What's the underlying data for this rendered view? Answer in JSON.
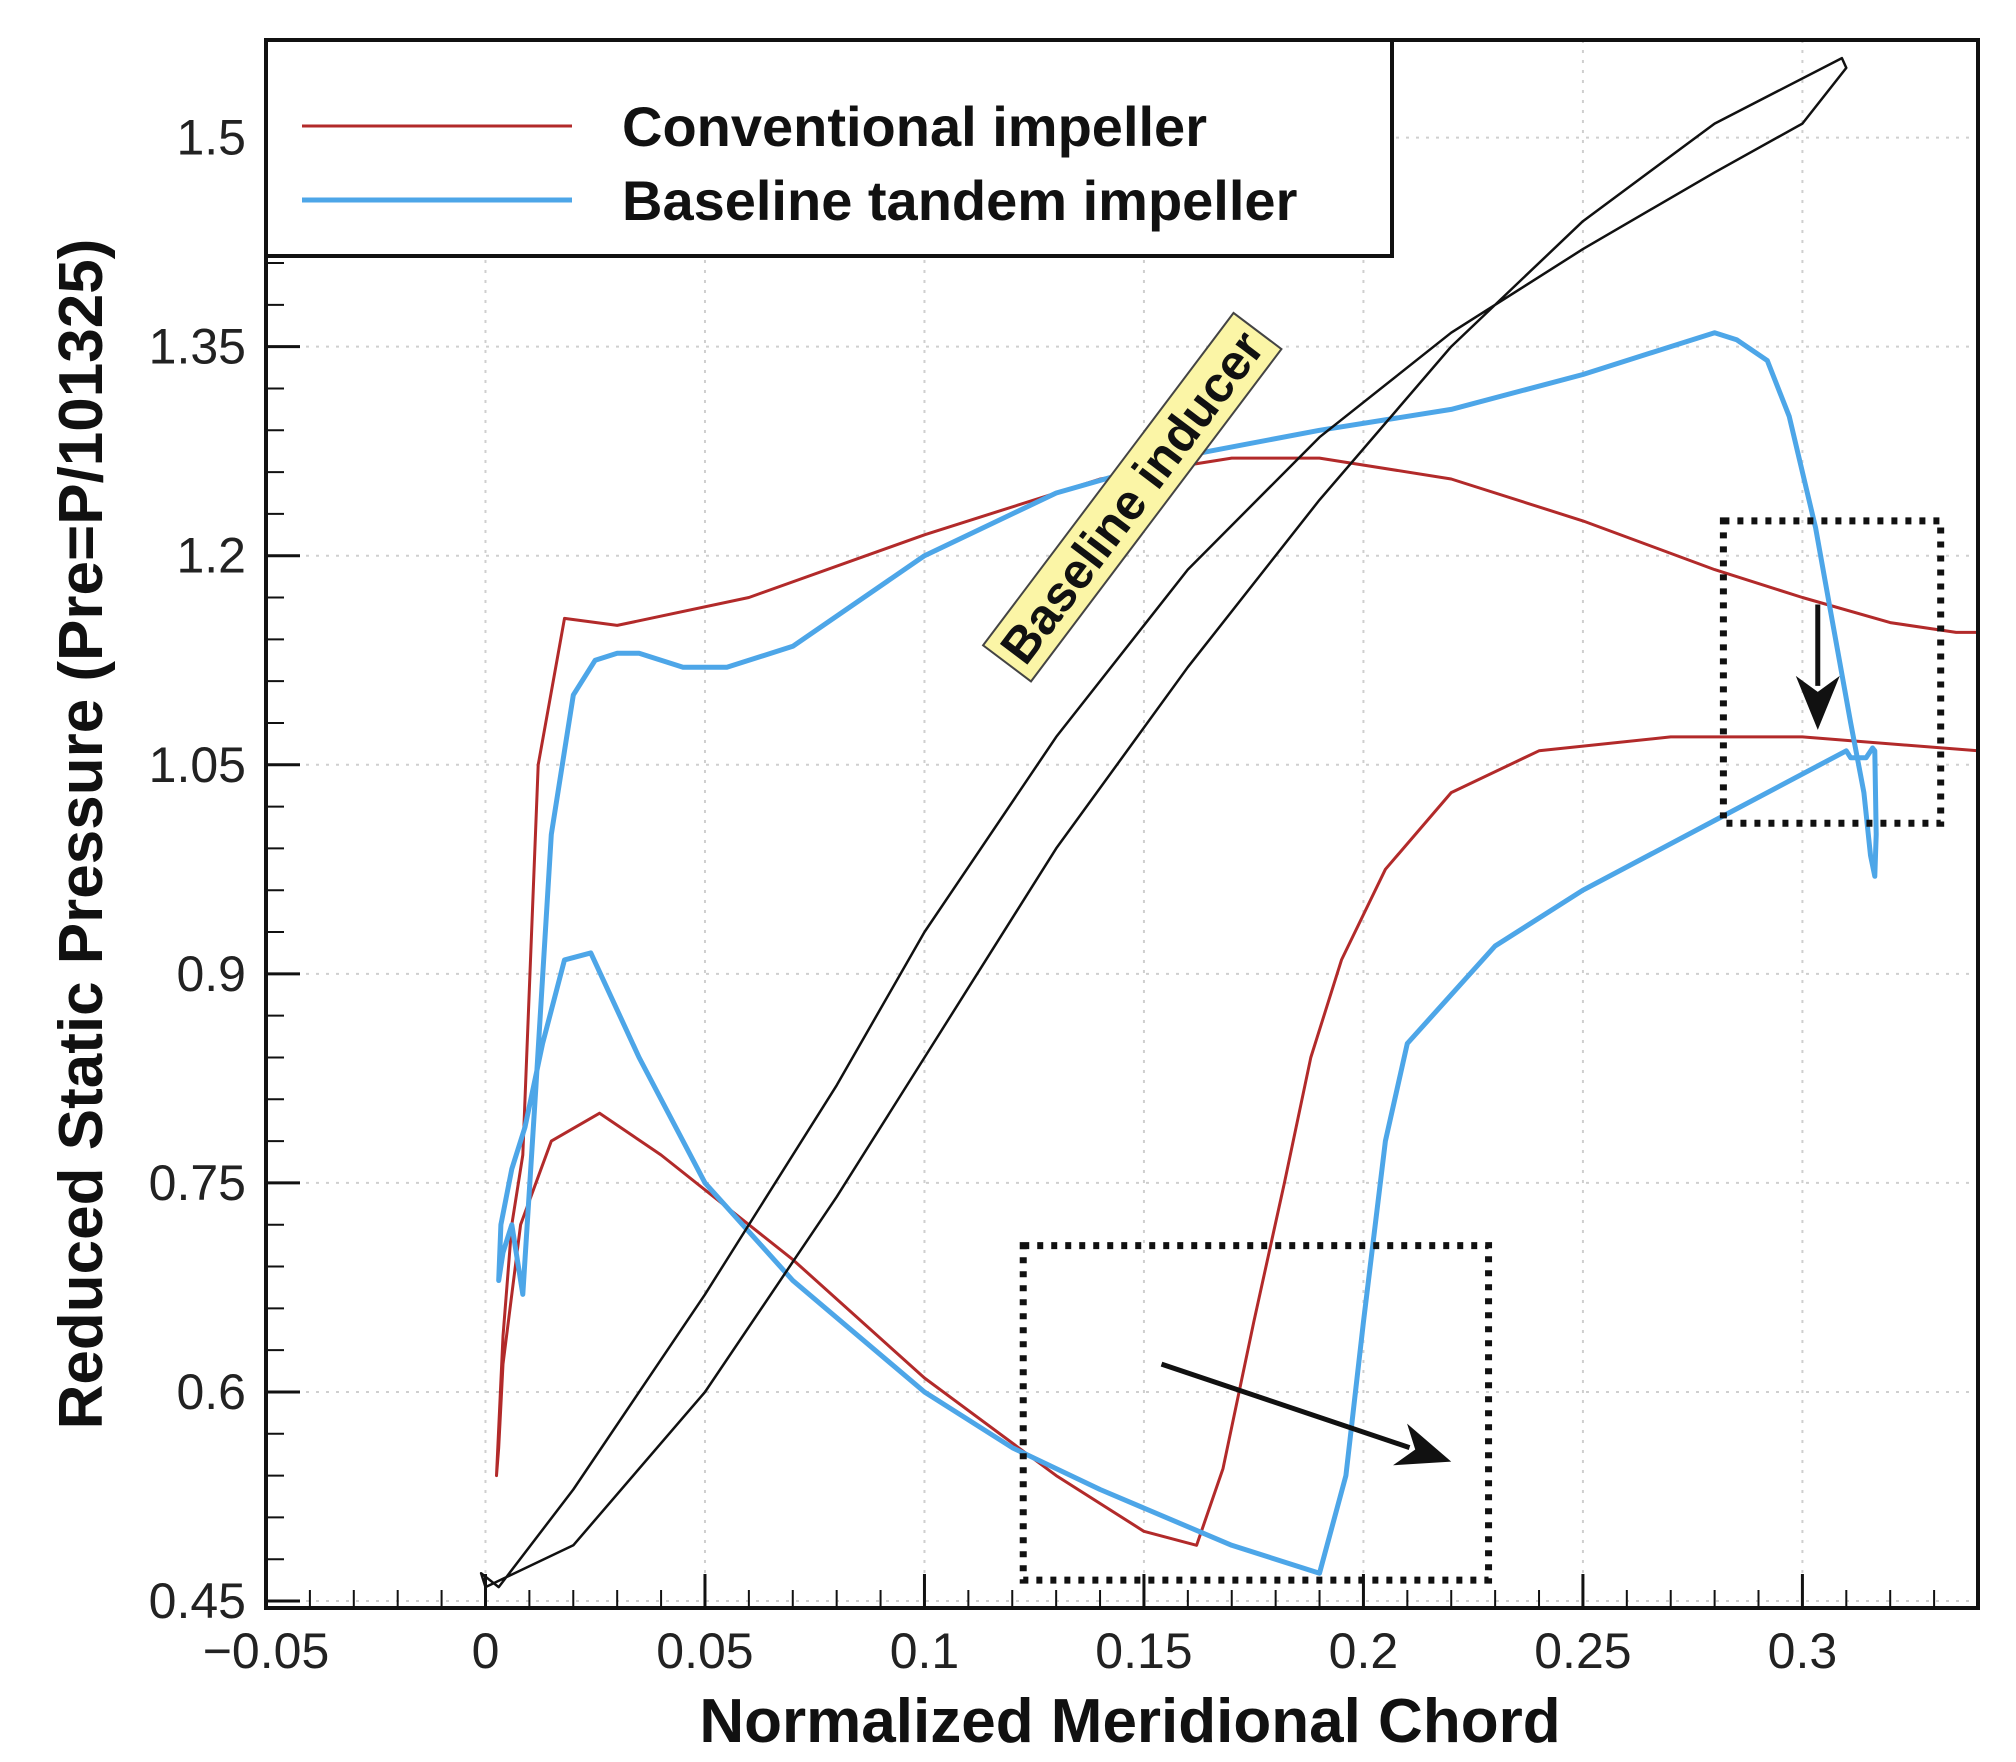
{
  "chart_data": {
    "type": "line",
    "title": "",
    "xlabel": "Normalized Meridional Chord",
    "ylabel": "Reduced Static Pressure (Pre=P/101325)",
    "xlim": [
      -0.05,
      0.34
    ],
    "ylim": [
      0.445,
      1.57
    ],
    "x_ticks": [
      -0.05,
      0,
      0.05,
      0.1,
      0.15,
      0.2,
      0.25,
      0.3
    ],
    "x_tick_labels": [
      "−0.05",
      "0",
      "0.05",
      "0.1",
      "0.15",
      "0.2",
      "0.25",
      "0.3"
    ],
    "y_ticks": [
      0.45,
      0.6,
      0.75,
      0.9,
      1.05,
      1.2,
      1.35,
      1.5
    ],
    "y_tick_labels": [
      "0.45",
      "0.6",
      "0.75",
      "0.9",
      "1.05",
      "1.2",
      "1.35",
      "1.5"
    ],
    "grid": true,
    "legend_position": "top-left",
    "series": [
      {
        "name": "Conventional impeller",
        "color": "#b22a2a",
        "width": 3,
        "x": [
          0.0085,
          0.012,
          0.018,
          0.03,
          0.06,
          0.1,
          0.14,
          0.17,
          0.19,
          0.22,
          0.25,
          0.28,
          0.3,
          0.32,
          0.335,
          0.34,
          null,
          0.34,
          0.3,
          0.27,
          0.24,
          0.22,
          0.205,
          0.195,
          0.188,
          0.182,
          0.175,
          0.168,
          0.162,
          0.15,
          0.13,
          0.1,
          0.07,
          0.04,
          0.026,
          0.015,
          0.008,
          0.004,
          0.003,
          0.0025,
          0.004,
          0.006,
          0.0085
        ],
        "y": [
          0.77,
          1.05,
          1.155,
          1.15,
          1.17,
          1.215,
          1.255,
          1.27,
          1.27,
          1.255,
          1.225,
          1.19,
          1.17,
          1.152,
          1.145,
          1.145,
          null,
          1.06,
          1.07,
          1.07,
          1.06,
          1.03,
          0.975,
          0.91,
          0.84,
          0.75,
          0.65,
          0.545,
          0.49,
          0.5,
          0.54,
          0.61,
          0.695,
          0.77,
          0.8,
          0.78,
          0.72,
          0.62,
          0.56,
          0.54,
          0.64,
          0.72,
          0.77
        ]
      },
      {
        "name": "Baseline tandem impeller",
        "color": "#4da6e8",
        "width": 5,
        "x": [
          0.0085,
          0.0115,
          0.015,
          0.02,
          0.025,
          0.03,
          0.035,
          0.045,
          0.055,
          0.07,
          0.1,
          0.13,
          0.16,
          0.19,
          0.22,
          0.25,
          0.27,
          0.28,
          0.285,
          0.292,
          0.297,
          0.303,
          0.307,
          0.311,
          0.314,
          0.3155,
          0.3165,
          0.3168,
          0.3165,
          0.316,
          0.3145,
          0.313,
          0.311,
          0.31,
          0.28,
          0.25,
          0.23,
          0.21,
          0.205,
          0.2,
          0.196,
          0.19,
          0.17,
          0.14,
          0.12,
          0.1,
          0.07,
          0.05,
          0.035,
          0.024,
          0.018,
          0.013,
          0.009,
          0.006,
          0.0035,
          0.003,
          0.004,
          0.006,
          0.0085
        ],
        "y": [
          0.67,
          0.82,
          1.0,
          1.1,
          1.125,
          1.13,
          1.13,
          1.12,
          1.12,
          1.135,
          1.2,
          1.245,
          1.272,
          1.29,
          1.305,
          1.33,
          1.35,
          1.36,
          1.355,
          1.34,
          1.3,
          1.22,
          1.15,
          1.08,
          1.03,
          0.985,
          0.97,
          1.0,
          1.06,
          1.062,
          1.055,
          1.055,
          1.055,
          1.06,
          1.01,
          0.96,
          0.92,
          0.85,
          0.78,
          0.65,
          0.54,
          0.47,
          0.49,
          0.53,
          0.56,
          0.6,
          0.68,
          0.75,
          0.84,
          0.915,
          0.91,
          0.85,
          0.79,
          0.76,
          0.72,
          0.68,
          0.7,
          0.72,
          0.67
        ]
      },
      {
        "name": "Baseline inducer",
        "color": "#111111",
        "width": 2.5,
        "x": [
          0.003,
          0.02,
          0.05,
          0.08,
          0.1,
          0.13,
          0.16,
          0.19,
          0.22,
          0.25,
          0.28,
          0.3,
          0.31,
          0.309,
          0.28,
          0.25,
          0.22,
          0.19,
          0.16,
          0.13,
          0.1,
          0.08,
          0.05,
          0.02,
          0.0,
          -0.001,
          0.003
        ],
        "y": [
          0.46,
          0.53,
          0.67,
          0.82,
          0.93,
          1.07,
          1.19,
          1.285,
          1.36,
          1.42,
          1.475,
          1.51,
          1.55,
          1.557,
          1.51,
          1.44,
          1.35,
          1.24,
          1.12,
          0.99,
          0.84,
          0.74,
          0.6,
          0.49,
          0.46,
          0.47,
          0.46
        ]
      }
    ],
    "annotations": [
      {
        "text": "Baseline inducer",
        "x": 0.123,
        "y": 1.12,
        "rotation_deg": -53,
        "background": "#fbf5a6"
      }
    ],
    "highlight_boxes": [
      {
        "x0": 0.1225,
        "x1": 0.2285,
        "y0": 0.465,
        "y1": 0.705
      },
      {
        "x0": 0.282,
        "x1": 0.3315,
        "y0": 1.008,
        "y1": 1.225
      }
    ],
    "arrows": [
      {
        "from": [
          0.154,
          0.62
        ],
        "to": [
          0.22,
          0.55
        ]
      },
      {
        "from": [
          0.3035,
          1.165
        ],
        "to": [
          0.3035,
          1.075
        ]
      }
    ]
  }
}
